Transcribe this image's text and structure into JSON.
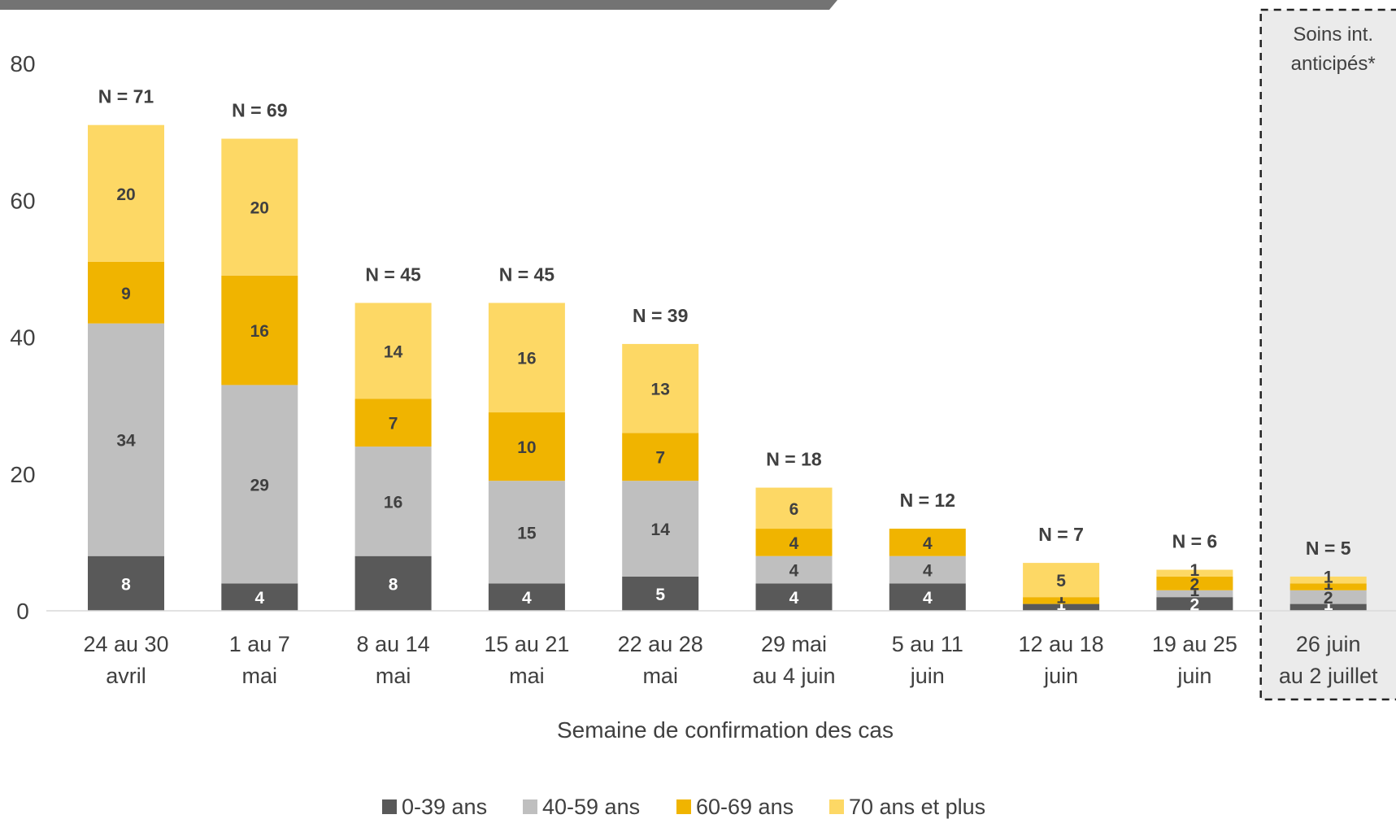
{
  "chart_data": {
    "type": "bar",
    "stacked": true,
    "categories": [
      [
        "24 au 30",
        "avril"
      ],
      [
        "1 au 7",
        "mai"
      ],
      [
        "8 au 14",
        "mai"
      ],
      [
        "15 au 21",
        "mai"
      ],
      [
        "22 au 28",
        "mai"
      ],
      [
        "29 mai",
        "au 4 juin"
      ],
      [
        "5 au 11",
        "juin"
      ],
      [
        "12 au 18",
        "juin"
      ],
      [
        "19 au 25",
        "juin"
      ],
      [
        "26 juin",
        "au 2 juillet"
      ]
    ],
    "totals": [
      "N = 71",
      "N = 69",
      "N = 45",
      "N = 45",
      "N = 39",
      "N = 18",
      "N = 12",
      "N = 7",
      "N = 6",
      "N = 5"
    ],
    "series": [
      {
        "name": "0-39 ans",
        "color": "#595959",
        "label_color": "#ffffff",
        "values": [
          8,
          4,
          8,
          4,
          5,
          4,
          4,
          1,
          2,
          1
        ]
      },
      {
        "name": "40-59 ans",
        "color": "#bfbfbf",
        "label_color": "#404040",
        "values": [
          34,
          29,
          16,
          15,
          14,
          4,
          4,
          0,
          1,
          2
        ]
      },
      {
        "name": "60-69 ans",
        "color": "#f0b400",
        "label_color": "#404040",
        "values": [
          9,
          16,
          7,
          10,
          7,
          4,
          4,
          1,
          2,
          1
        ]
      },
      {
        "name": "70 ans et plus",
        "color": "#fdd865",
        "label_color": "#404040",
        "values": [
          20,
          20,
          14,
          16,
          13,
          6,
          0,
          5,
          1,
          1
        ]
      }
    ],
    "data_labels": [
      [
        "8",
        "34",
        "9",
        "20"
      ],
      [
        "4",
        "29",
        "16",
        "20"
      ],
      [
        "8",
        "16",
        "7",
        "14"
      ],
      [
        "4",
        "15",
        "10",
        "16"
      ],
      [
        "5",
        "14",
        "7",
        "13"
      ],
      [
        "4",
        "4",
        "4",
        "6"
      ],
      [
        "4",
        "4",
        "4",
        ""
      ],
      [
        "1",
        "",
        "1",
        "5"
      ],
      [
        "2",
        "1",
        "2",
        "1"
      ],
      [
        "1",
        "2",
        "1",
        "1"
      ]
    ],
    "xlabel": "Semaine de confirmation des cas",
    "ylabel": "",
    "ylim": [
      0,
      80
    ],
    "yticks": [
      "0",
      "20",
      "40",
      "60",
      "80"
    ],
    "grid": false,
    "legend_position": "bottom",
    "annotation": [
      "Soins int.",
      "anticipés*"
    ],
    "annotated_category": "26 juin au 2 juillet"
  }
}
